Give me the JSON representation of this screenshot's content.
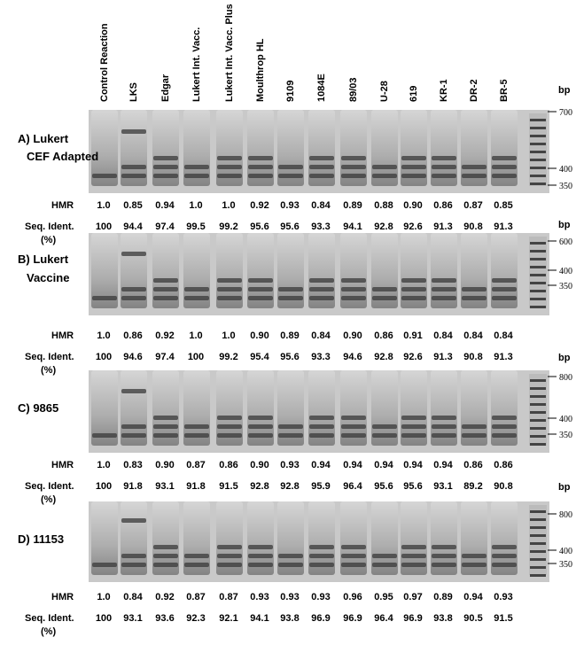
{
  "lanes": [
    "Control Reaction",
    "LKS",
    "Edgar",
    "Lukert Int. Vacc.",
    "Lukert Int. Vacc. Plus",
    "Moulthrop HL",
    "9109",
    "1084E",
    "89/03",
    "U-28",
    "619",
    "KR-1",
    "DR-2",
    "BR-5"
  ],
  "panels": [
    {
      "label": [
        "A) Lukert",
        "CEF Adapted"
      ],
      "bp_unit": "bp",
      "markers": [
        "700",
        "400",
        "350"
      ],
      "hmr_label": "HMR",
      "hmr": [
        "1.0",
        "0.85",
        "0.94",
        "1.0",
        "1.0",
        "0.92",
        "0.93",
        "0.84",
        "0.89",
        "0.88",
        "0.90",
        "0.86",
        "0.87",
        "0.85"
      ],
      "seq_label": [
        "Seq. Ident.",
        "(%)"
      ],
      "seq": [
        "100",
        "94.4",
        "97.4",
        "99.5",
        "99.2",
        "95.6",
        "95.6",
        "93.3",
        "94.1",
        "92.8",
        "92.6",
        "91.3",
        "90.8",
        "91.3"
      ]
    },
    {
      "label": [
        "B) Lukert",
        "Vaccine"
      ],
      "bp_unit": "bp",
      "markers": [
        "600",
        "400",
        "350"
      ],
      "hmr_label": "HMR",
      "hmr": [
        "1.0",
        "0.86",
        "0.92",
        "1.0",
        "1.0",
        "0.90",
        "0.89",
        "0.84",
        "0.90",
        "0.86",
        "0.91",
        "0.84",
        "0.84",
        "0.84"
      ],
      "seq_label": [
        "Seq. Ident.",
        "(%)"
      ],
      "seq": [
        "100",
        "94.6",
        "97.4",
        "100",
        "99.2",
        "95.4",
        "95.6",
        "93.3",
        "94.6",
        "92.8",
        "92.6",
        "91.3",
        "90.8",
        "91.3"
      ]
    },
    {
      "label": [
        "C) 9865"
      ],
      "bp_unit": "bp",
      "markers": [
        "800",
        "400",
        "350"
      ],
      "hmr_label": "HMR",
      "hmr": [
        "1.0",
        "0.83",
        "0.90",
        "0.87",
        "0.86",
        "0.90",
        "0.93",
        "0.94",
        "0.94",
        "0.94",
        "0.94",
        "0.94",
        "0.86",
        "0.86"
      ],
      "seq_label": [
        "Seq. Ident.",
        "(%)"
      ],
      "seq": [
        "100",
        "91.8",
        "93.1",
        "91.8",
        "91.5",
        "92.8",
        "92.8",
        "95.9",
        "96.4",
        "95.6",
        "95.6",
        "93.1",
        "89.2",
        "90.8"
      ]
    },
    {
      "label": [
        "D) 11153"
      ],
      "bp_unit": "bp",
      "markers": [
        "800",
        "400",
        "350"
      ],
      "hmr_label": "HMR",
      "hmr": [
        "1.0",
        "0.84",
        "0.92",
        "0.87",
        "0.87",
        "0.93",
        "0.93",
        "0.93",
        "0.96",
        "0.95",
        "0.97",
        "0.89",
        "0.94",
        "0.93"
      ],
      "seq_label": [
        "Seq. Ident.",
        "(%)"
      ],
      "seq": [
        "100",
        "93.1",
        "93.6",
        "92.3",
        "92.1",
        "94.1",
        "93.8",
        "96.9",
        "96.9",
        "96.4",
        "96.9",
        "93.8",
        "90.5",
        "91.5"
      ]
    }
  ]
}
